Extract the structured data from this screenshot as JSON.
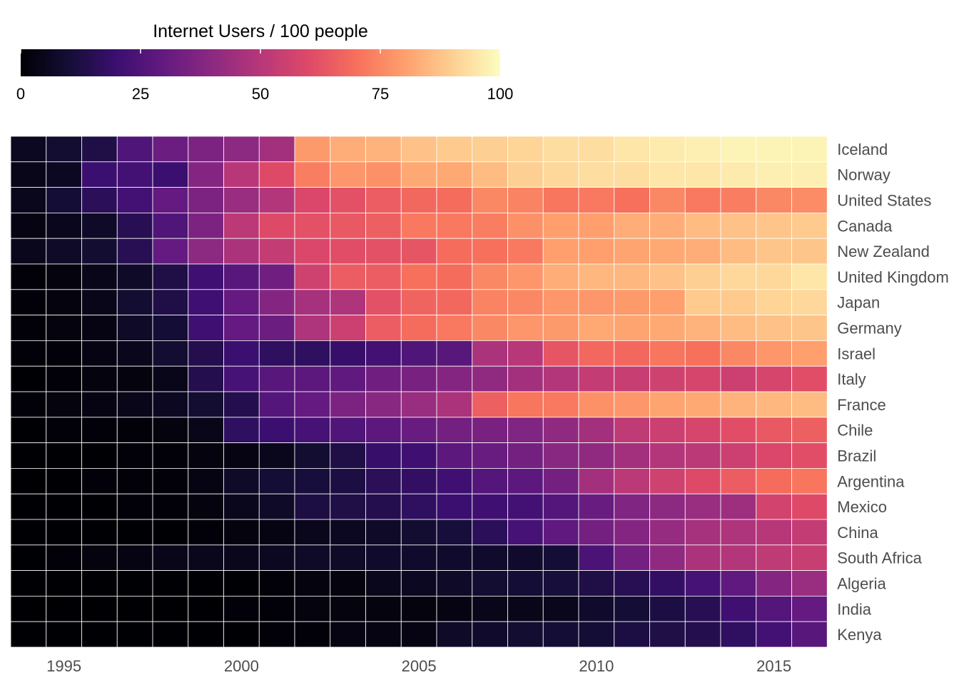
{
  "chart_data": {
    "type": "heatmap",
    "legend": {
      "title": "Internet Users / 100 people",
      "ticks": [
        "0",
        "25",
        "50",
        "75",
        "100"
      ],
      "range": [
        0,
        100
      ],
      "placement": "top-left",
      "colormap": "magma"
    },
    "x": [
      1994,
      1995,
      1996,
      1997,
      1998,
      1999,
      2000,
      2001,
      2002,
      2003,
      2004,
      2005,
      2006,
      2007,
      2008,
      2009,
      2010,
      2011,
      2012,
      2013,
      2014,
      2015,
      2016
    ],
    "x_tick_labels": [
      "1995",
      "2000",
      "2005",
      "2010",
      "2015"
    ],
    "x_tick_values": [
      1995,
      2000,
      2005,
      2010,
      2015
    ],
    "grid": false,
    "series": [
      {
        "name": "Iceland",
        "values": [
          6,
          9,
          13,
          25,
          32,
          36,
          40,
          45,
          79,
          83,
          84,
          87,
          89,
          90,
          91,
          93,
          93,
          95,
          96,
          97,
          98,
          98,
          98
        ]
      },
      {
        "name": "Norway",
        "values": [
          4,
          6,
          20,
          22,
          20,
          38,
          50,
          60,
          73,
          78,
          77,
          82,
          82,
          86,
          90,
          92,
          93,
          93,
          95,
          95,
          96,
          97,
          97
        ]
      },
      {
        "name": "United States",
        "values": [
          5,
          10,
          16,
          22,
          30,
          36,
          43,
          49,
          59,
          62,
          65,
          68,
          69,
          75,
          74,
          71,
          72,
          70,
          75,
          72,
          73,
          75,
          76
        ]
      },
      {
        "name": "Canada",
        "values": [
          3,
          5,
          7,
          15,
          25,
          36,
          51,
          60,
          62,
          64,
          66,
          72,
          72,
          73,
          77,
          80,
          80,
          83,
          83,
          86,
          87,
          88,
          89
        ]
      },
      {
        "name": "New Zealand",
        "values": [
          5,
          7,
          9,
          15,
          30,
          40,
          47,
          53,
          59,
          61,
          62,
          63,
          69,
          70,
          72,
          80,
          80,
          81,
          82,
          83,
          86,
          88,
          88
        ]
      },
      {
        "name": "United Kingdom",
        "values": [
          1,
          2,
          4,
          7,
          13,
          21,
          27,
          33,
          56,
          65,
          65,
          70,
          69,
          75,
          78,
          83,
          85,
          85,
          87,
          90,
          92,
          92,
          95
        ]
      },
      {
        "name": "Japan",
        "values": [
          1,
          2,
          4,
          9,
          13,
          21,
          30,
          38,
          46,
          48,
          62,
          67,
          68,
          74,
          75,
          78,
          78,
          79,
          80,
          89,
          89,
          91,
          92
        ]
      },
      {
        "name": "Germany",
        "values": [
          1,
          2,
          3,
          7,
          10,
          21,
          30,
          32,
          48,
          55,
          65,
          69,
          72,
          75,
          78,
          79,
          82,
          81,
          82,
          84,
          86,
          87,
          88
        ]
      },
      {
        "name": "Israel",
        "values": [
          1,
          1,
          3,
          5,
          9,
          14,
          20,
          17,
          17,
          19,
          22,
          25,
          27,
          47,
          50,
          63,
          68,
          68,
          71,
          70,
          75,
          78,
          80
        ]
      },
      {
        "name": "Italy",
        "values": [
          0,
          1,
          2,
          2,
          4,
          14,
          23,
          27,
          28,
          29,
          33,
          35,
          38,
          41,
          45,
          49,
          53,
          54,
          56,
          58,
          55,
          58,
          61
        ]
      },
      {
        "name": "France",
        "values": [
          1,
          2,
          3,
          4,
          6,
          9,
          14,
          26,
          30,
          36,
          39,
          43,
          47,
          66,
          71,
          72,
          77,
          78,
          81,
          82,
          84,
          85,
          86
        ]
      },
      {
        "name": "Chile",
        "values": [
          0,
          1,
          1,
          1,
          2,
          4,
          17,
          20,
          23,
          25,
          28,
          31,
          34,
          35,
          37,
          41,
          45,
          52,
          55,
          58,
          61,
          64,
          66
        ]
      },
      {
        "name": "Brazil",
        "values": [
          0,
          0,
          0,
          1,
          1,
          2,
          3,
          5,
          9,
          13,
          19,
          21,
          28,
          31,
          34,
          39,
          41,
          45,
          49,
          51,
          55,
          59,
          61
        ]
      },
      {
        "name": "Argentina",
        "values": [
          0,
          0,
          1,
          1,
          1,
          3,
          7,
          10,
          11,
          12,
          16,
          18,
          21,
          26,
          28,
          34,
          45,
          51,
          56,
          60,
          65,
          69,
          71
        ]
      },
      {
        "name": "Mexico",
        "values": [
          0,
          0,
          0,
          1,
          1,
          2,
          5,
          7,
          12,
          13,
          14,
          17,
          20,
          21,
          22,
          26,
          31,
          37,
          40,
          43,
          44,
          57,
          60
        ]
      },
      {
        "name": "China",
        "values": [
          0,
          0,
          0,
          0,
          0,
          1,
          2,
          3,
          5,
          6,
          7,
          9,
          11,
          16,
          23,
          29,
          34,
          38,
          42,
          46,
          48,
          50,
          53
        ]
      },
      {
        "name": "South Africa",
        "values": [
          0,
          1,
          2,
          3,
          4,
          5,
          5,
          6,
          7,
          7,
          8,
          8,
          8,
          8,
          8,
          10,
          24,
          34,
          41,
          47,
          49,
          52,
          54
        ]
      },
      {
        "name": "Algeria",
        "values": [
          0,
          0,
          0,
          0,
          0,
          0,
          0,
          1,
          2,
          2,
          5,
          6,
          7,
          9,
          10,
          11,
          13,
          15,
          18,
          23,
          29,
          38,
          43
        ]
      },
      {
        "name": "India",
        "values": [
          0,
          0,
          0,
          0,
          0,
          0,
          1,
          1,
          2,
          2,
          2,
          2,
          3,
          4,
          4,
          5,
          8,
          10,
          12,
          15,
          21,
          26,
          30
        ]
      },
      {
        "name": "Kenya",
        "values": [
          0,
          0,
          0,
          0,
          0,
          0,
          0,
          1,
          1,
          3,
          3,
          3,
          7,
          8,
          9,
          10,
          10,
          12,
          13,
          14,
          17,
          22,
          27
        ]
      }
    ]
  }
}
